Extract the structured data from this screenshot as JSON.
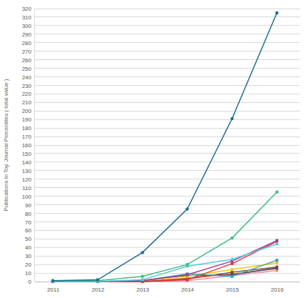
{
  "chart_data": {
    "type": "line",
    "y_label": "Publications in Top Journal Percentiles ( total value )",
    "x": [
      2011,
      2012,
      2013,
      2014,
      2015,
      2016
    ],
    "xlim": [
      2011,
      2016
    ],
    "xticks": [
      2011,
      2012,
      2013,
      2014,
      2015,
      2016
    ],
    "ylim": [
      0,
      320
    ],
    "yticks": [
      0,
      10,
      20,
      30,
      40,
      50,
      60,
      70,
      80,
      90,
      100,
      110,
      120,
      130,
      140,
      150,
      160,
      170,
      180,
      190,
      200,
      210,
      220,
      230,
      240,
      250,
      260,
      270,
      280,
      290,
      300,
      310,
      320
    ],
    "grid": true,
    "series": [
      {
        "color": "#1b6d91",
        "marker": "circle",
        "values": [
          1,
          2,
          34,
          85,
          191,
          315
        ]
      },
      {
        "color": "#3dbd82",
        "marker": "circle",
        "values": [
          1,
          1,
          6,
          20,
          51,
          105
        ]
      },
      {
        "color": "#56c6da",
        "marker": "triangle",
        "values": [
          0,
          0,
          2,
          18,
          26,
          44
        ]
      },
      {
        "color": "#9b3f9e",
        "marker": "square",
        "values": [
          0,
          0,
          1,
          8,
          24,
          48
        ]
      },
      {
        "color": "#e0383e",
        "marker": "circle",
        "values": [
          0,
          0,
          0,
          2,
          21,
          47
        ]
      },
      {
        "color": "#3aa3b8",
        "marker": "square",
        "values": [
          0,
          0,
          1,
          9,
          6,
          25
        ]
      },
      {
        "color": "#f2c618",
        "marker": "circle",
        "values": [
          0,
          0,
          1,
          6,
          14,
          22
        ]
      },
      {
        "color": "#7a4a2a",
        "marker": "square",
        "values": [
          0,
          0,
          0,
          3,
          11,
          17
        ]
      },
      {
        "color": "#3b4a7a",
        "marker": "square",
        "values": [
          0,
          0,
          1,
          7,
          8,
          16
        ]
      },
      {
        "color": "#e8742a",
        "marker": "circle",
        "values": [
          0,
          0,
          0,
          4,
          9,
          15
        ]
      },
      {
        "color": "#f08da8",
        "marker": "circle",
        "values": [
          0,
          0,
          0,
          1,
          7,
          13
        ]
      }
    ]
  }
}
